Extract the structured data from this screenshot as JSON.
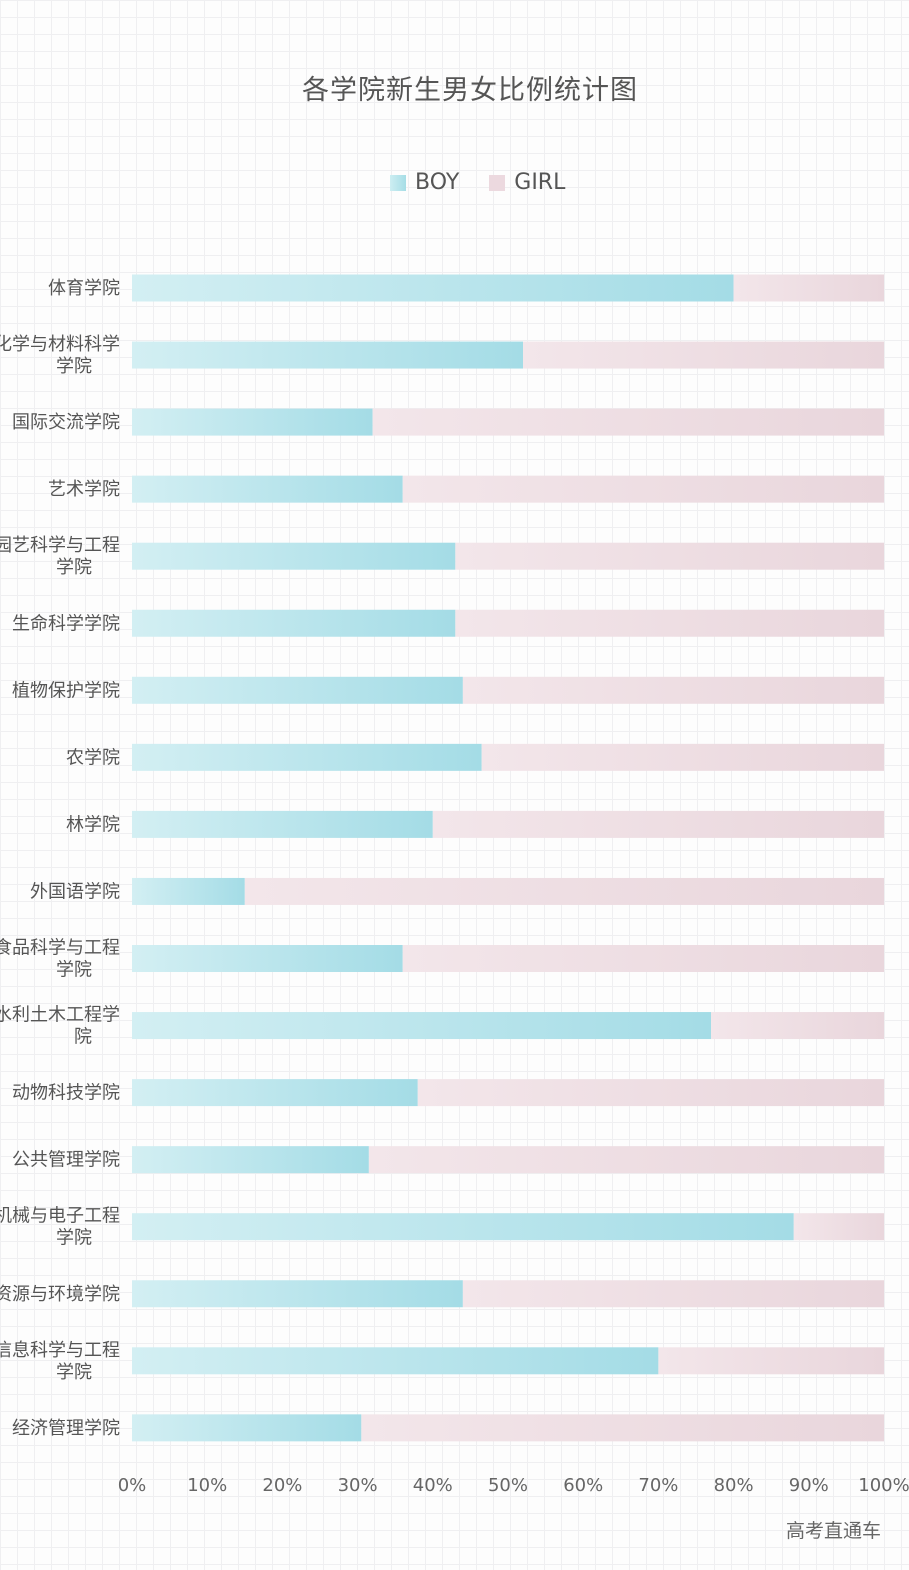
{
  "chart_data": {
    "type": "bar",
    "orientation": "horizontal",
    "stacked": true,
    "title": "各学院新生男女比例统计图",
    "categories": [
      "体育学院",
      "化学与材料科学学院",
      "国际交流学院",
      "艺术学院",
      "园艺科学与工程学院",
      "生命科学学院",
      "植物保护学院",
      "农学院",
      "林学院",
      "外国语学院",
      "食品科学与工程学院",
      "水利土木工程学院",
      "动物科技学院",
      "公共管理学院",
      "机械与电子工程学院",
      "资源与环境学院",
      "信息科学与工程学院",
      "经济管理学院"
    ],
    "series": [
      {
        "name": "BOY",
        "color": "#a6dde6",
        "values": [
          80,
          52,
          32,
          36,
          43,
          43,
          44,
          46.5,
          40,
          15,
          36,
          77,
          38,
          31.5,
          88,
          44,
          70,
          30.5
        ]
      },
      {
        "name": "GIRL",
        "color": "#ecd9df",
        "values": [
          20,
          48,
          68,
          64,
          57,
          57,
          56,
          53.5,
          60,
          85,
          64,
          23,
          62,
          68.5,
          12,
          56,
          30,
          69.5
        ]
      }
    ],
    "xlim": [
      0,
      100
    ],
    "xticks": [
      "0%",
      "10%",
      "20%",
      "30%",
      "40%",
      "50%",
      "60%",
      "70%",
      "80%",
      "90%",
      "100%"
    ],
    "legend": "top",
    "grid": false
  },
  "watermark": "高考直通车"
}
